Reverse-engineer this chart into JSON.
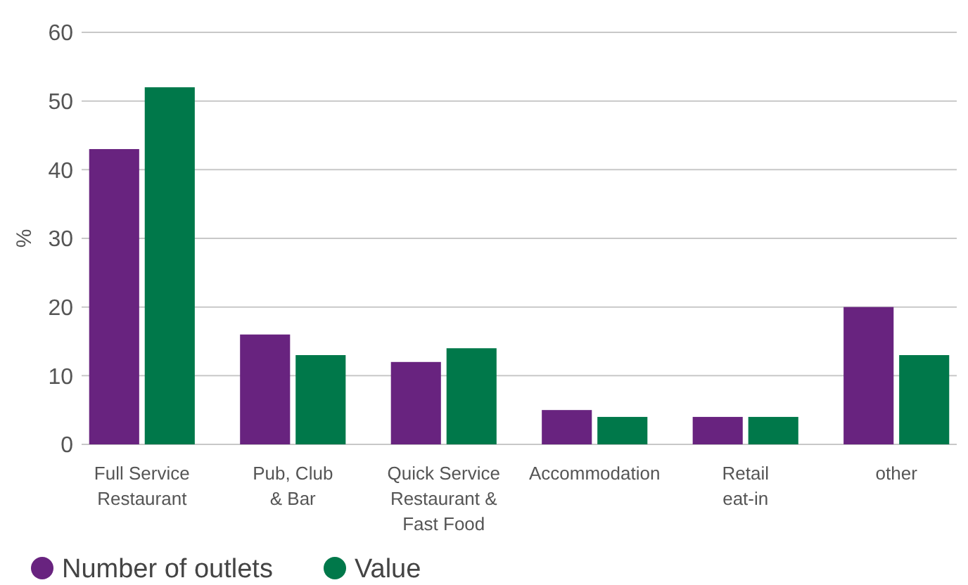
{
  "chart_data": {
    "type": "bar",
    "ylabel": "%",
    "categories": [
      "Full Service\nRestaurant",
      "Pub, Club\n& Bar",
      "Quick Service\nRestaurant &\nFast Food",
      "Accommodation",
      "Retail\neat-in",
      "other"
    ],
    "series": [
      {
        "name": "Number of outlets",
        "color": "#68237f",
        "values": [
          43,
          16,
          12,
          5,
          4,
          20
        ]
      },
      {
        "name": "Value",
        "color": "#00784a",
        "values": [
          52,
          13,
          14,
          4,
          4,
          13
        ]
      }
    ],
    "ylim": [
      0,
      60
    ],
    "yticks": [
      0,
      10,
      20,
      30,
      40,
      50,
      60
    ],
    "grid": "y",
    "legend": "bottom left"
  }
}
